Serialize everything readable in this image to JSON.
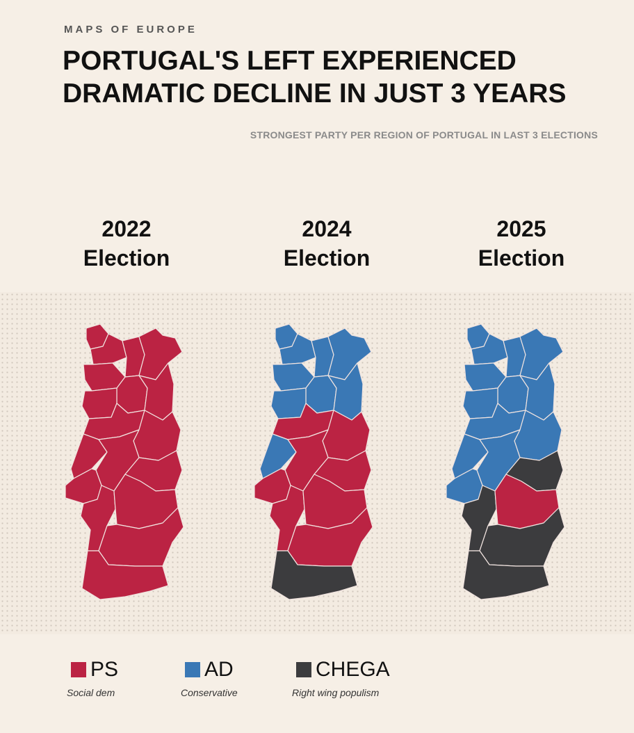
{
  "header": {
    "brand": "MAPS OF EUROPE",
    "title_line1": "PORTUGAL'S LEFT EXPERIENCED",
    "title_line2": "DRAMATIC DECLINE IN JUST 3 YEARS",
    "subtitle": "STRONGEST PARTY PER REGION OF PORTUGAL IN LAST 3 ELECTIONS"
  },
  "colors": {
    "PS": "#bb2343",
    "AD": "#3a78b5",
    "CHEGA": "#3c3c3e",
    "border": "#f1e4e0"
  },
  "maps": [
    {
      "year": "2022",
      "label": "Election",
      "regions": {
        "Viana do Castelo": "PS",
        "Braga": "PS",
        "Vila Real": "PS",
        "Braganca": "PS",
        "Porto": "PS",
        "Aveiro": "PS",
        "Viseu": "PS",
        "Guarda": "PS",
        "Coimbra": "PS",
        "Castelo Branco": "PS",
        "Leiria": "PS",
        "Santarem": "PS",
        "Portalegre": "PS",
        "Lisboa": "PS",
        "Setubal": "PS",
        "Evora": "PS",
        "Beja": "PS",
        "Faro": "PS"
      }
    },
    {
      "year": "2024",
      "label": "Election",
      "regions": {
        "Viana do Castelo": "AD",
        "Braga": "AD",
        "Vila Real": "AD",
        "Braganca": "AD",
        "Porto": "AD",
        "Aveiro": "AD",
        "Viseu": "AD",
        "Guarda": "AD",
        "Coimbra": "PS",
        "Castelo Branco": "PS",
        "Leiria": "AD",
        "Santarem": "PS",
        "Portalegre": "PS",
        "Lisboa": "PS",
        "Setubal": "PS",
        "Evora": "PS",
        "Beja": "PS",
        "Faro": "CHEGA"
      }
    },
    {
      "year": "2025",
      "label": "Election",
      "regions": {
        "Viana do Castelo": "AD",
        "Braga": "AD",
        "Vila Real": "AD",
        "Braganca": "AD",
        "Porto": "AD",
        "Aveiro": "AD",
        "Viseu": "AD",
        "Guarda": "AD",
        "Coimbra": "AD",
        "Castelo Branco": "AD",
        "Leiria": "AD",
        "Santarem": "AD",
        "Portalegre": "CHEGA",
        "Lisboa": "AD",
        "Setubal": "CHEGA",
        "Evora": "PS",
        "Beja": "CHEGA",
        "Faro": "CHEGA"
      }
    }
  ],
  "legend": [
    {
      "key": "PS",
      "name": "PS",
      "desc": "Social dem"
    },
    {
      "key": "AD",
      "name": "AD",
      "desc": "Conservative"
    },
    {
      "key": "CHEGA",
      "name": "CHEGA",
      "desc": "Right wing populism"
    }
  ]
}
